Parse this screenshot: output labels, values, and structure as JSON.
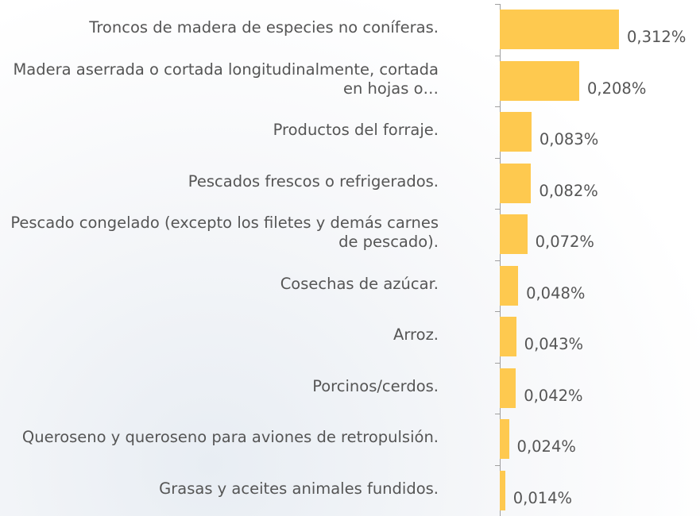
{
  "chart_data": {
    "type": "bar",
    "orientation": "horizontal",
    "categories": [
      "Troncos de madera de especies no coníferas.",
      "Madera aserrada o cortada longitudinalmente, cortada en hojas o…",
      "Productos del forraje.",
      "Pescados frescos o refrigerados.",
      "Pescado congelado (excepto los filetes y demás carnes de pescado).",
      "Cosechas de azúcar.",
      "Arroz.",
      "Porcinos/cerdos.",
      "Queroseno y queroseno para aviones de retropulsión.",
      "Grasas y aceites animales fundidos."
    ],
    "values": [
      0.312,
      0.208,
      0.083,
      0.082,
      0.072,
      0.048,
      0.043,
      0.042,
      0.024,
      0.014
    ],
    "value_labels": [
      "0,312%",
      "0,208%",
      "0,083%",
      "0,082%",
      "0,072%",
      "0,048%",
      "0,043%",
      "0,042%",
      "0,024%",
      "0,014%"
    ],
    "color": "#fec94f"
  }
}
